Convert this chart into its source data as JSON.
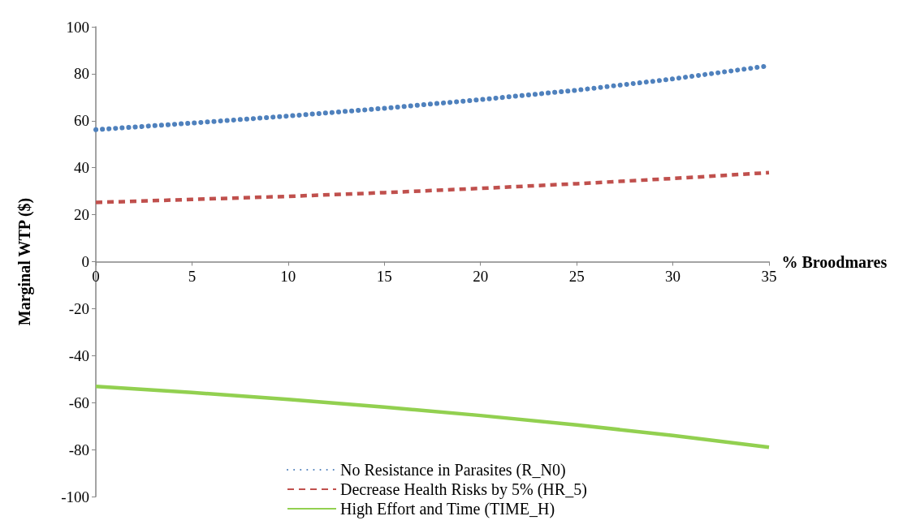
{
  "chart_data": {
    "type": "line",
    "xlabel": "% Broodmares",
    "ylabel": "Marginal WTP ($)",
    "x": [
      0,
      5,
      10,
      15,
      20,
      25,
      30,
      35
    ],
    "series": [
      {
        "name": "No Resistance in Parasites (R_N0)",
        "color": "#4f81bd",
        "line_style": "dotted",
        "values": [
          56.2,
          59,
          62,
          65.3,
          69,
          73,
          77.8,
          83.4
        ]
      },
      {
        "name": "Decrease Health Risks by 5% (HR_5)",
        "color": "#c0504d",
        "line_style": "dashed",
        "values": [
          25.2,
          26.5,
          27.8,
          29.4,
          31.2,
          33.2,
          35.4,
          37.9
        ]
      },
      {
        "name": "High Effort and Time (TIME_H)",
        "color": "#92d050",
        "line_style": "solid",
        "values": [
          -53.1,
          -55.7,
          -58.6,
          -61.9,
          -65.5,
          -69.5,
          -74,
          -79
        ]
      }
    ],
    "xlim": [
      0,
      35
    ],
    "xticks": [
      0,
      5,
      10,
      15,
      20,
      25,
      30,
      35
    ],
    "ylim": [
      -100,
      100
    ],
    "yticks": [
      -100,
      -80,
      -60,
      -40,
      -20,
      0,
      20,
      40,
      60,
      80,
      100
    ],
    "grid": false,
    "legend": "bottom",
    "marker": "none"
  }
}
